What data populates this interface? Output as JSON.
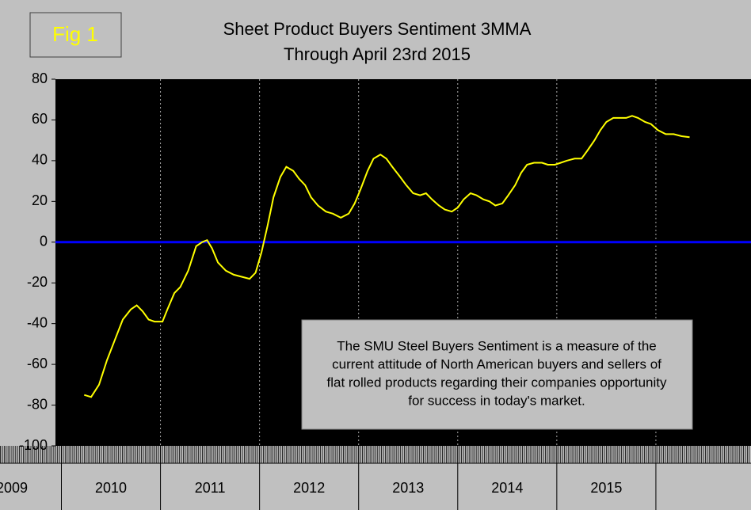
{
  "chart_data": {
    "type": "line",
    "title": "Sheet Product Buyers Sentiment 3MMA",
    "subtitle": "Through April 23rd 2015",
    "figure_label": "Fig 1",
    "annotation": [
      "The SMU Steel Buyers Sentiment is a measure of the",
      "current attitude of North American buyers and sellers of",
      "flat rolled products regarding their companies opportunity",
      "for success in today's market."
    ],
    "year_labels": [
      "2009",
      "2010",
      "2011",
      "2012",
      "2013",
      "2014",
      "2015"
    ],
    "xlim": [
      2008.94,
      2015.96
    ],
    "xticks": [
      2009,
      2010,
      2011,
      2012,
      2013,
      2014,
      2015
    ],
    "ylim": [
      -100,
      80
    ],
    "yticks": [
      -100,
      -80,
      -60,
      -40,
      -20,
      0,
      20,
      40,
      60,
      80
    ],
    "zero_line_color": "#0000ff",
    "background": "#000000",
    "x": [
      2009.23,
      2009.3,
      2009.38,
      2009.46,
      2009.54,
      2009.62,
      2009.7,
      2009.76,
      2009.82,
      2009.88,
      2009.94,
      2010.02,
      2010.07,
      2010.14,
      2010.2,
      2010.28,
      2010.36,
      2010.42,
      2010.47,
      2010.52,
      2010.58,
      2010.66,
      2010.74,
      2010.82,
      2010.9,
      2010.96,
      2011.02,
      2011.08,
      2011.14,
      2011.21,
      2011.27,
      2011.34,
      2011.4,
      2011.46,
      2011.52,
      2011.59,
      2011.67,
      2011.74,
      2011.82,
      2011.9,
      2011.96,
      2012.02,
      2012.09,
      2012.15,
      2012.22,
      2012.28,
      2012.34,
      2012.42,
      2012.48,
      2012.55,
      2012.62,
      2012.68,
      2012.74,
      2012.81,
      2012.87,
      2012.94,
      2013.0,
      2013.06,
      2013.13,
      2013.19,
      2013.26,
      2013.32,
      2013.38,
      2013.45,
      2013.51,
      2013.58,
      2013.64,
      2013.7,
      2013.77,
      2013.85,
      2013.91,
      2013.98,
      2014.04,
      2014.1,
      2014.18,
      2014.25,
      2014.31,
      2014.38,
      2014.44,
      2014.5,
      2014.57,
      2014.63,
      2014.7,
      2014.76,
      2014.82,
      2014.89,
      2014.95,
      2015.02,
      2015.1,
      2015.18,
      2015.26,
      2015.34
    ],
    "series": [
      {
        "name": "Buyers Sentiment 3MMA",
        "color": "#ffff00",
        "values": [
          -75,
          -76,
          -70,
          -58,
          -48,
          -38,
          -33,
          -31,
          -34,
          -38,
          -39,
          -39,
          -33,
          -25,
          -22,
          -14,
          -2,
          0,
          1,
          -3,
          -10,
          -14,
          -16,
          -17,
          -18,
          -15,
          -5,
          8,
          22,
          32,
          37,
          35,
          31,
          28,
          22,
          18,
          15,
          14,
          12,
          14,
          19,
          26,
          35,
          41,
          43,
          41,
          37,
          32,
          28,
          24,
          23,
          24,
          21,
          18,
          16,
          15,
          17,
          21,
          24,
          23,
          21,
          20,
          18,
          19,
          23,
          28,
          34,
          38,
          39,
          39,
          38,
          38,
          39,
          40,
          41,
          41,
          45,
          50,
          55,
          59,
          61,
          61,
          61,
          62,
          61,
          59,
          58,
          55,
          53,
          53,
          52,
          51.5
        ]
      }
    ]
  }
}
